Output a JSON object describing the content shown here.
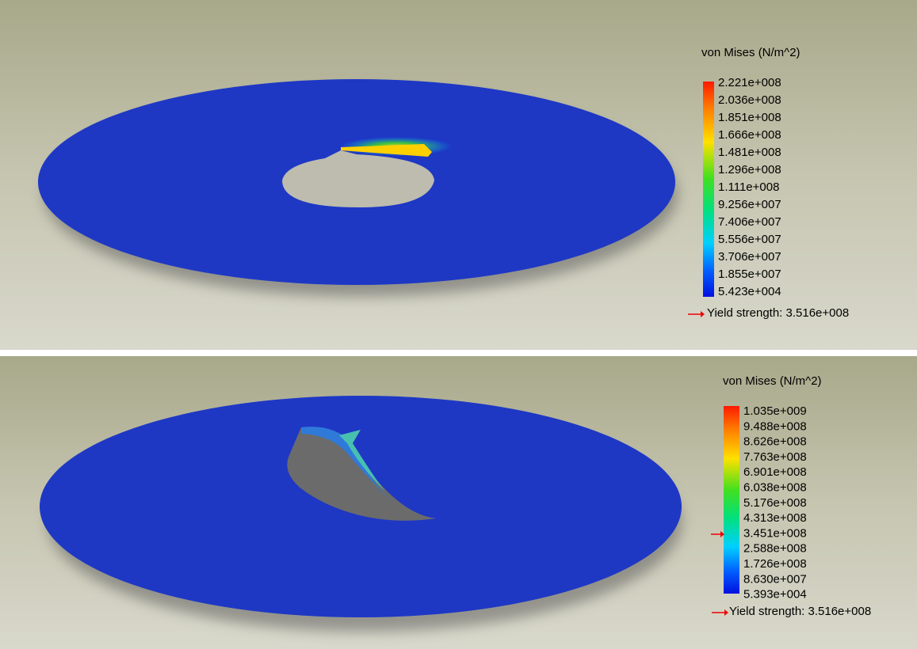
{
  "panels": [
    {
      "legend": {
        "title": "von Mises (N/m^2)",
        "labels": [
          "2.221e+008",
          "2.036e+008",
          "1.851e+008",
          "1.666e+008",
          "1.481e+008",
          "1.296e+008",
          "1.111e+008",
          "9.256e+007",
          "7.406e+007",
          "5.556e+007",
          "3.706e+007",
          "1.855e+007",
          "5.423e+004"
        ],
        "yield_strength": "Yield strength: 3.516e+008"
      }
    },
    {
      "legend": {
        "title": "von Mises (N/m^2)",
        "labels": [
          "1.035e+009",
          "9.488e+008",
          "8.626e+008",
          "7.763e+008",
          "6.901e+008",
          "6.038e+008",
          "5.176e+008",
          "4.313e+008",
          "3.451e+008",
          "2.588e+008",
          "1.726e+008",
          "8.630e+007",
          "5.393e+004"
        ],
        "yield_strength": "Yield strength: 3.516e+008"
      }
    }
  ]
}
